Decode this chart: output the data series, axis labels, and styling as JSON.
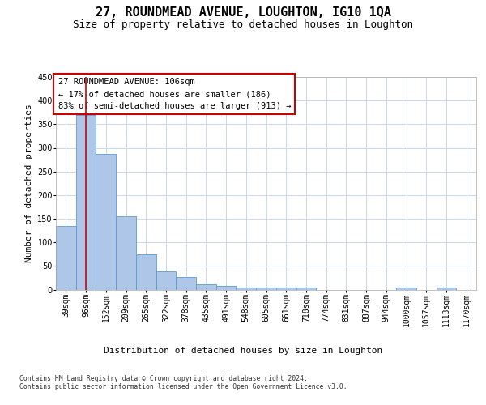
{
  "title": "27, ROUNDMEAD AVENUE, LOUGHTON, IG10 1QA",
  "subtitle": "Size of property relative to detached houses in Loughton",
  "xlabel": "Distribution of detached houses by size in Loughton",
  "ylabel": "Number of detached properties",
  "categories": [
    "39sqm",
    "96sqm",
    "152sqm",
    "209sqm",
    "265sqm",
    "322sqm",
    "378sqm",
    "435sqm",
    "491sqm",
    "548sqm",
    "605sqm",
    "661sqm",
    "718sqm",
    "774sqm",
    "831sqm",
    "887sqm",
    "944sqm",
    "1000sqm",
    "1057sqm",
    "1113sqm",
    "1170sqm"
  ],
  "values": [
    135,
    370,
    288,
    155,
    75,
    38,
    27,
    12,
    7,
    5,
    4,
    4,
    4,
    0,
    0,
    0,
    0,
    4,
    0,
    4,
    0
  ],
  "bar_color": "#aec6e8",
  "bar_edge_color": "#5b9bd5",
  "background_color": "#ffffff",
  "grid_color": "#c8d8e8",
  "vline_x": 1,
  "vline_color": "#cc0000",
  "annotation_text": "27 ROUNDMEAD AVENUE: 106sqm\n← 17% of detached houses are smaller (186)\n83% of semi-detached houses are larger (913) →",
  "annotation_box_color": "#ffffff",
  "annotation_box_edge_color": "#cc0000",
  "footer_text": "Contains HM Land Registry data © Crown copyright and database right 2024.\nContains public sector information licensed under the Open Government Licence v3.0.",
  "ylim": [
    0,
    450
  ],
  "yticks": [
    0,
    50,
    100,
    150,
    200,
    250,
    300,
    350,
    400,
    450
  ],
  "title_fontsize": 11,
  "subtitle_fontsize": 9,
  "tick_fontsize": 7,
  "ylabel_fontsize": 8,
  "xlabel_fontsize": 8,
  "annotation_fontsize": 7.5,
  "footer_fontsize": 5.8
}
